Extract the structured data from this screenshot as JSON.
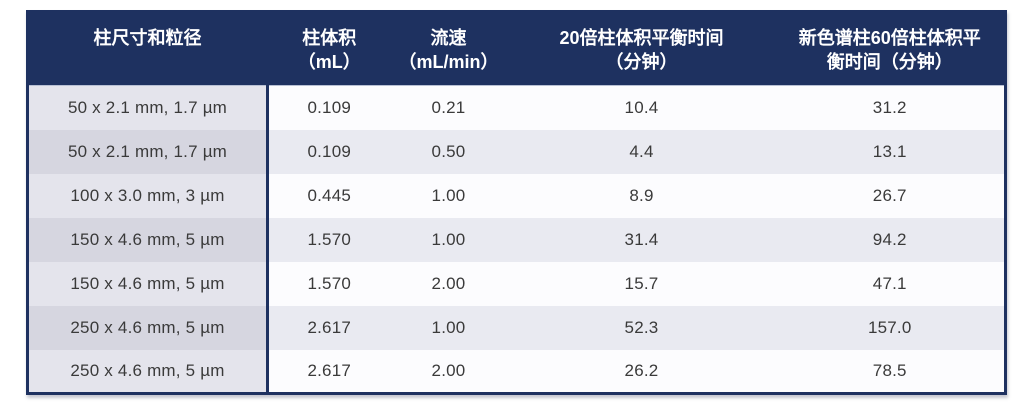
{
  "chart_data": {
    "type": "table",
    "columns": [
      "柱尺寸和粒径",
      "柱体积\n（mL）",
      "流速\n（mL/min）",
      "20倍柱体积平衡时间\n（分钟）",
      "新色谱柱60倍柱体积平\n衡时间（分钟）"
    ],
    "rows": [
      {
        "size": "50 x 2.1 mm, 1.7 µm",
        "volume": "0.109",
        "flow": "0.21",
        "t20": "10.4",
        "t60": "31.2"
      },
      {
        "size": "50 x 2.1 mm, 1.7 µm",
        "volume": "0.109",
        "flow": "0.50",
        "t20": "4.4",
        "t60": "13.1"
      },
      {
        "size": "100 x 3.0 mm, 3 µm",
        "volume": "0.445",
        "flow": "1.00",
        "t20": "8.9",
        "t60": "26.7"
      },
      {
        "size": "150 x 4.6 mm, 5 µm",
        "volume": "1.570",
        "flow": "1.00",
        "t20": "31.4",
        "t60": "94.2"
      },
      {
        "size": "150 x 4.6 mm, 5 µm",
        "volume": "1.570",
        "flow": "2.00",
        "t20": "15.7",
        "t60": "47.1"
      },
      {
        "size": "250 x 4.6 mm, 5 µm",
        "volume": "2.617",
        "flow": "1.00",
        "t20": "52.3",
        "t60": "157.0"
      },
      {
        "size": "250 x 4.6 mm, 5 µm",
        "volume": "2.617",
        "flow": "2.00",
        "t20": "26.2",
        "t60": "78.5"
      }
    ]
  },
  "colors": {
    "header-bg": "#1e3160",
    "border": "#1e3160",
    "col1-light": "#e4e4ec",
    "col1-dark": "#d6d6e0",
    "data-light": "#fcfcfe",
    "data-dark": "#e9eaf1",
    "body-text": "#3a3a3a",
    "header-text": "#ffffff"
  }
}
